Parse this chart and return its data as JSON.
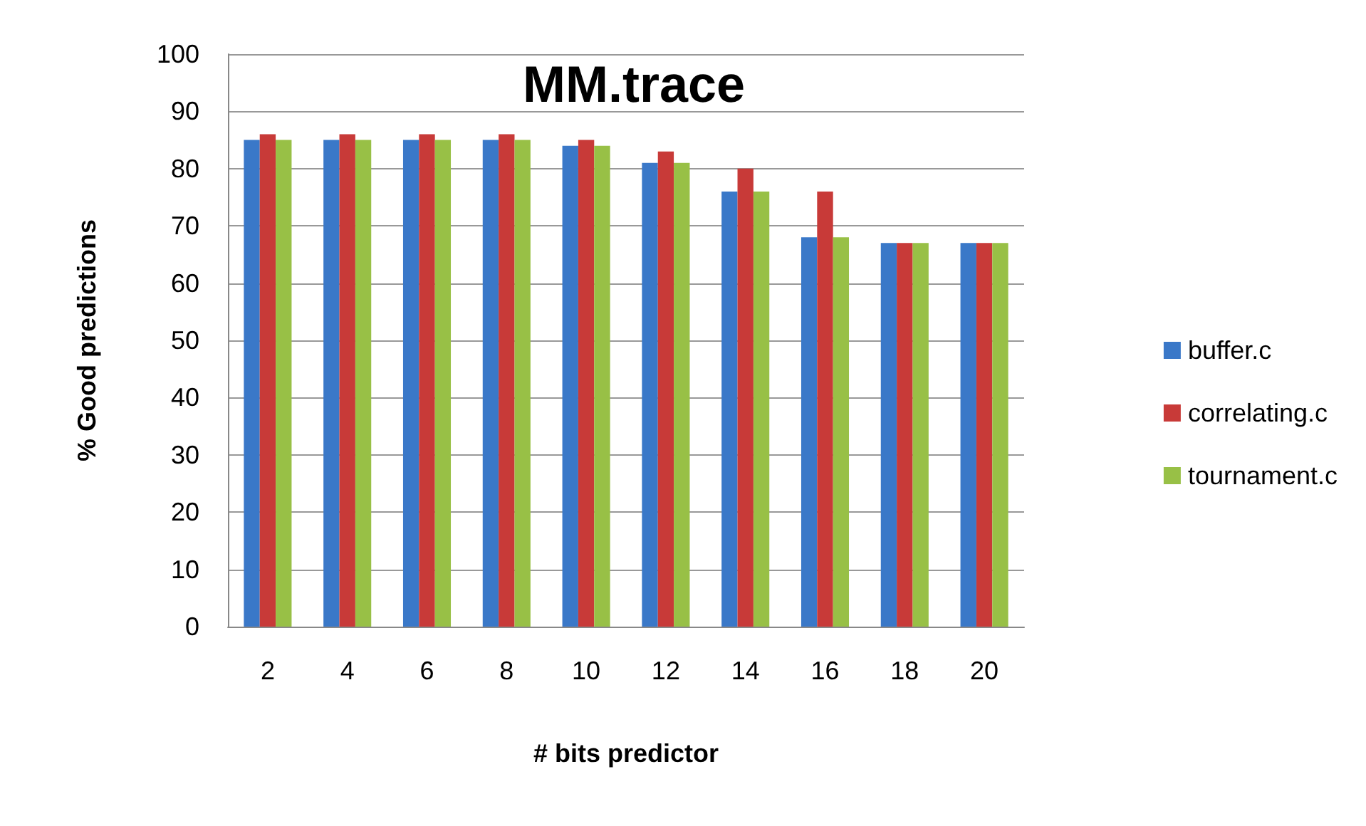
{
  "chart_data": {
    "type": "bar",
    "title": "MM.trace",
    "xlabel": "# bits predictor",
    "ylabel": "% Good predictions",
    "categories": [
      "2",
      "4",
      "6",
      "8",
      "10",
      "12",
      "14",
      "16",
      "18",
      "20"
    ],
    "series": [
      {
        "name": "buffer.c",
        "color": "#3a78c8",
        "values": [
          85,
          85,
          85,
          85,
          84,
          81,
          76,
          68,
          67,
          67
        ]
      },
      {
        "name": "correlating.c",
        "color": "#c83a38",
        "values": [
          86,
          86,
          86,
          86,
          85,
          83,
          80,
          76,
          67,
          67
        ]
      },
      {
        "name": "tournament.c",
        "color": "#98c046",
        "values": [
          85,
          85,
          85,
          85,
          84,
          81,
          76,
          68,
          67,
          67
        ]
      }
    ],
    "ylim": [
      0,
      100
    ],
    "yticks": [
      0,
      10,
      20,
      30,
      40,
      50,
      60,
      70,
      80,
      90,
      100
    ],
    "grid": "y",
    "legend": "right"
  }
}
